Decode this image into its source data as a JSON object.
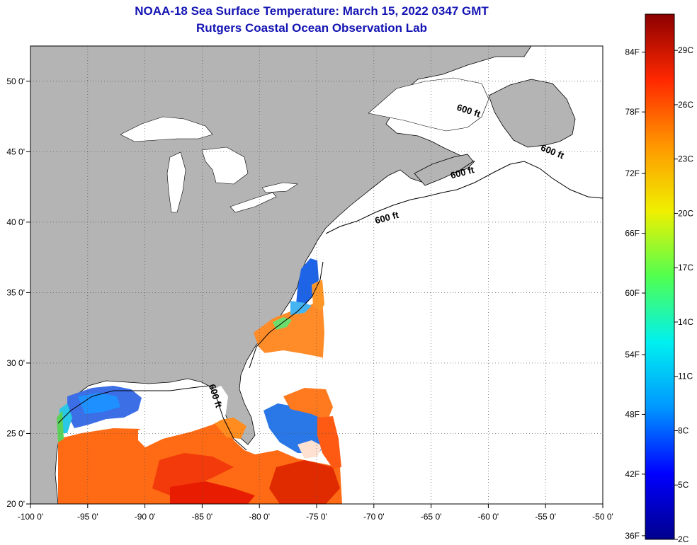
{
  "title": "NOAA-18 Sea Surface Temperature:  March 15, 2022 0347 GMT",
  "subtitle": "Rutgers Coastal Ocean Observation Lab",
  "map": {
    "lon_range": [
      -100,
      -50
    ],
    "lat_range": [
      20,
      52.5
    ],
    "lon_ticks": [
      {
        "value": -100,
        "label": "-100 0'"
      },
      {
        "value": -95,
        "label": "-95 0'"
      },
      {
        "value": -90,
        "label": "-90 0'"
      },
      {
        "value": -85,
        "label": "-85 0'"
      },
      {
        "value": -80,
        "label": "-80 0'"
      },
      {
        "value": -75,
        "label": "-75 0'"
      },
      {
        "value": -70,
        "label": "-70 0'"
      },
      {
        "value": -65,
        "label": "-65 0'"
      },
      {
        "value": -60,
        "label": "-60 0'"
      },
      {
        "value": -55,
        "label": "-55 0'"
      },
      {
        "value": -50,
        "label": "-50 0'"
      }
    ],
    "lat_ticks": [
      {
        "value": 20,
        "label": "20 0'"
      },
      {
        "value": 25,
        "label": "25 0'"
      },
      {
        "value": 30,
        "label": "30 0'"
      },
      {
        "value": 35,
        "label": "35 0'"
      },
      {
        "value": 40,
        "label": "40 0'"
      },
      {
        "value": 45,
        "label": "45 0'"
      },
      {
        "value": 50,
        "label": "50 0'"
      }
    ],
    "contour_labels": [
      {
        "text": "600 ft",
        "lon": -61.8,
        "lat": 47.7,
        "angle": 18
      },
      {
        "text": "600 ft",
        "lon": -54.5,
        "lat": 44.8,
        "angle": 22
      },
      {
        "text": "600 ft",
        "lon": -62.2,
        "lat": 43.3,
        "angle": -15
      },
      {
        "text": "600 ft",
        "lon": -68.8,
        "lat": 40.1,
        "angle": -15
      },
      {
        "text": "600 ft",
        "lon": -84.1,
        "lat": 27.6,
        "angle": 72
      }
    ],
    "land_color": "#b4b4b4",
    "grid": true
  },
  "colorbar": {
    "min_c": 2,
    "max_c": 31,
    "f_labels": [
      {
        "value_c": 2.2,
        "label": "36F"
      },
      {
        "value_c": 5.6,
        "label": "42F"
      },
      {
        "value_c": 8.9,
        "label": "48F"
      },
      {
        "value_c": 12.2,
        "label": "54F"
      },
      {
        "value_c": 15.6,
        "label": "60F"
      },
      {
        "value_c": 18.9,
        "label": "66F"
      },
      {
        "value_c": 22.2,
        "label": "72F"
      },
      {
        "value_c": 25.6,
        "label": "78F"
      },
      {
        "value_c": 28.9,
        "label": "84F"
      }
    ],
    "c_labels": [
      {
        "value_c": 2,
        "label": "2C"
      },
      {
        "value_c": 5,
        "label": "5C"
      },
      {
        "value_c": 8,
        "label": "8C"
      },
      {
        "value_c": 11,
        "label": "11C"
      },
      {
        "value_c": 14,
        "label": "14C"
      },
      {
        "value_c": 17,
        "label": "17C"
      },
      {
        "value_c": 20,
        "label": "20C"
      },
      {
        "value_c": 23,
        "label": "23C"
      },
      {
        "value_c": 26,
        "label": "26C"
      },
      {
        "value_c": 29,
        "label": "29C"
      }
    ],
    "colors": [
      "#00008c",
      "#0000ff",
      "#0096ff",
      "#00f0f0",
      "#50ff50",
      "#f0f000",
      "#ff9600",
      "#ff2800",
      "#8c0000"
    ]
  }
}
